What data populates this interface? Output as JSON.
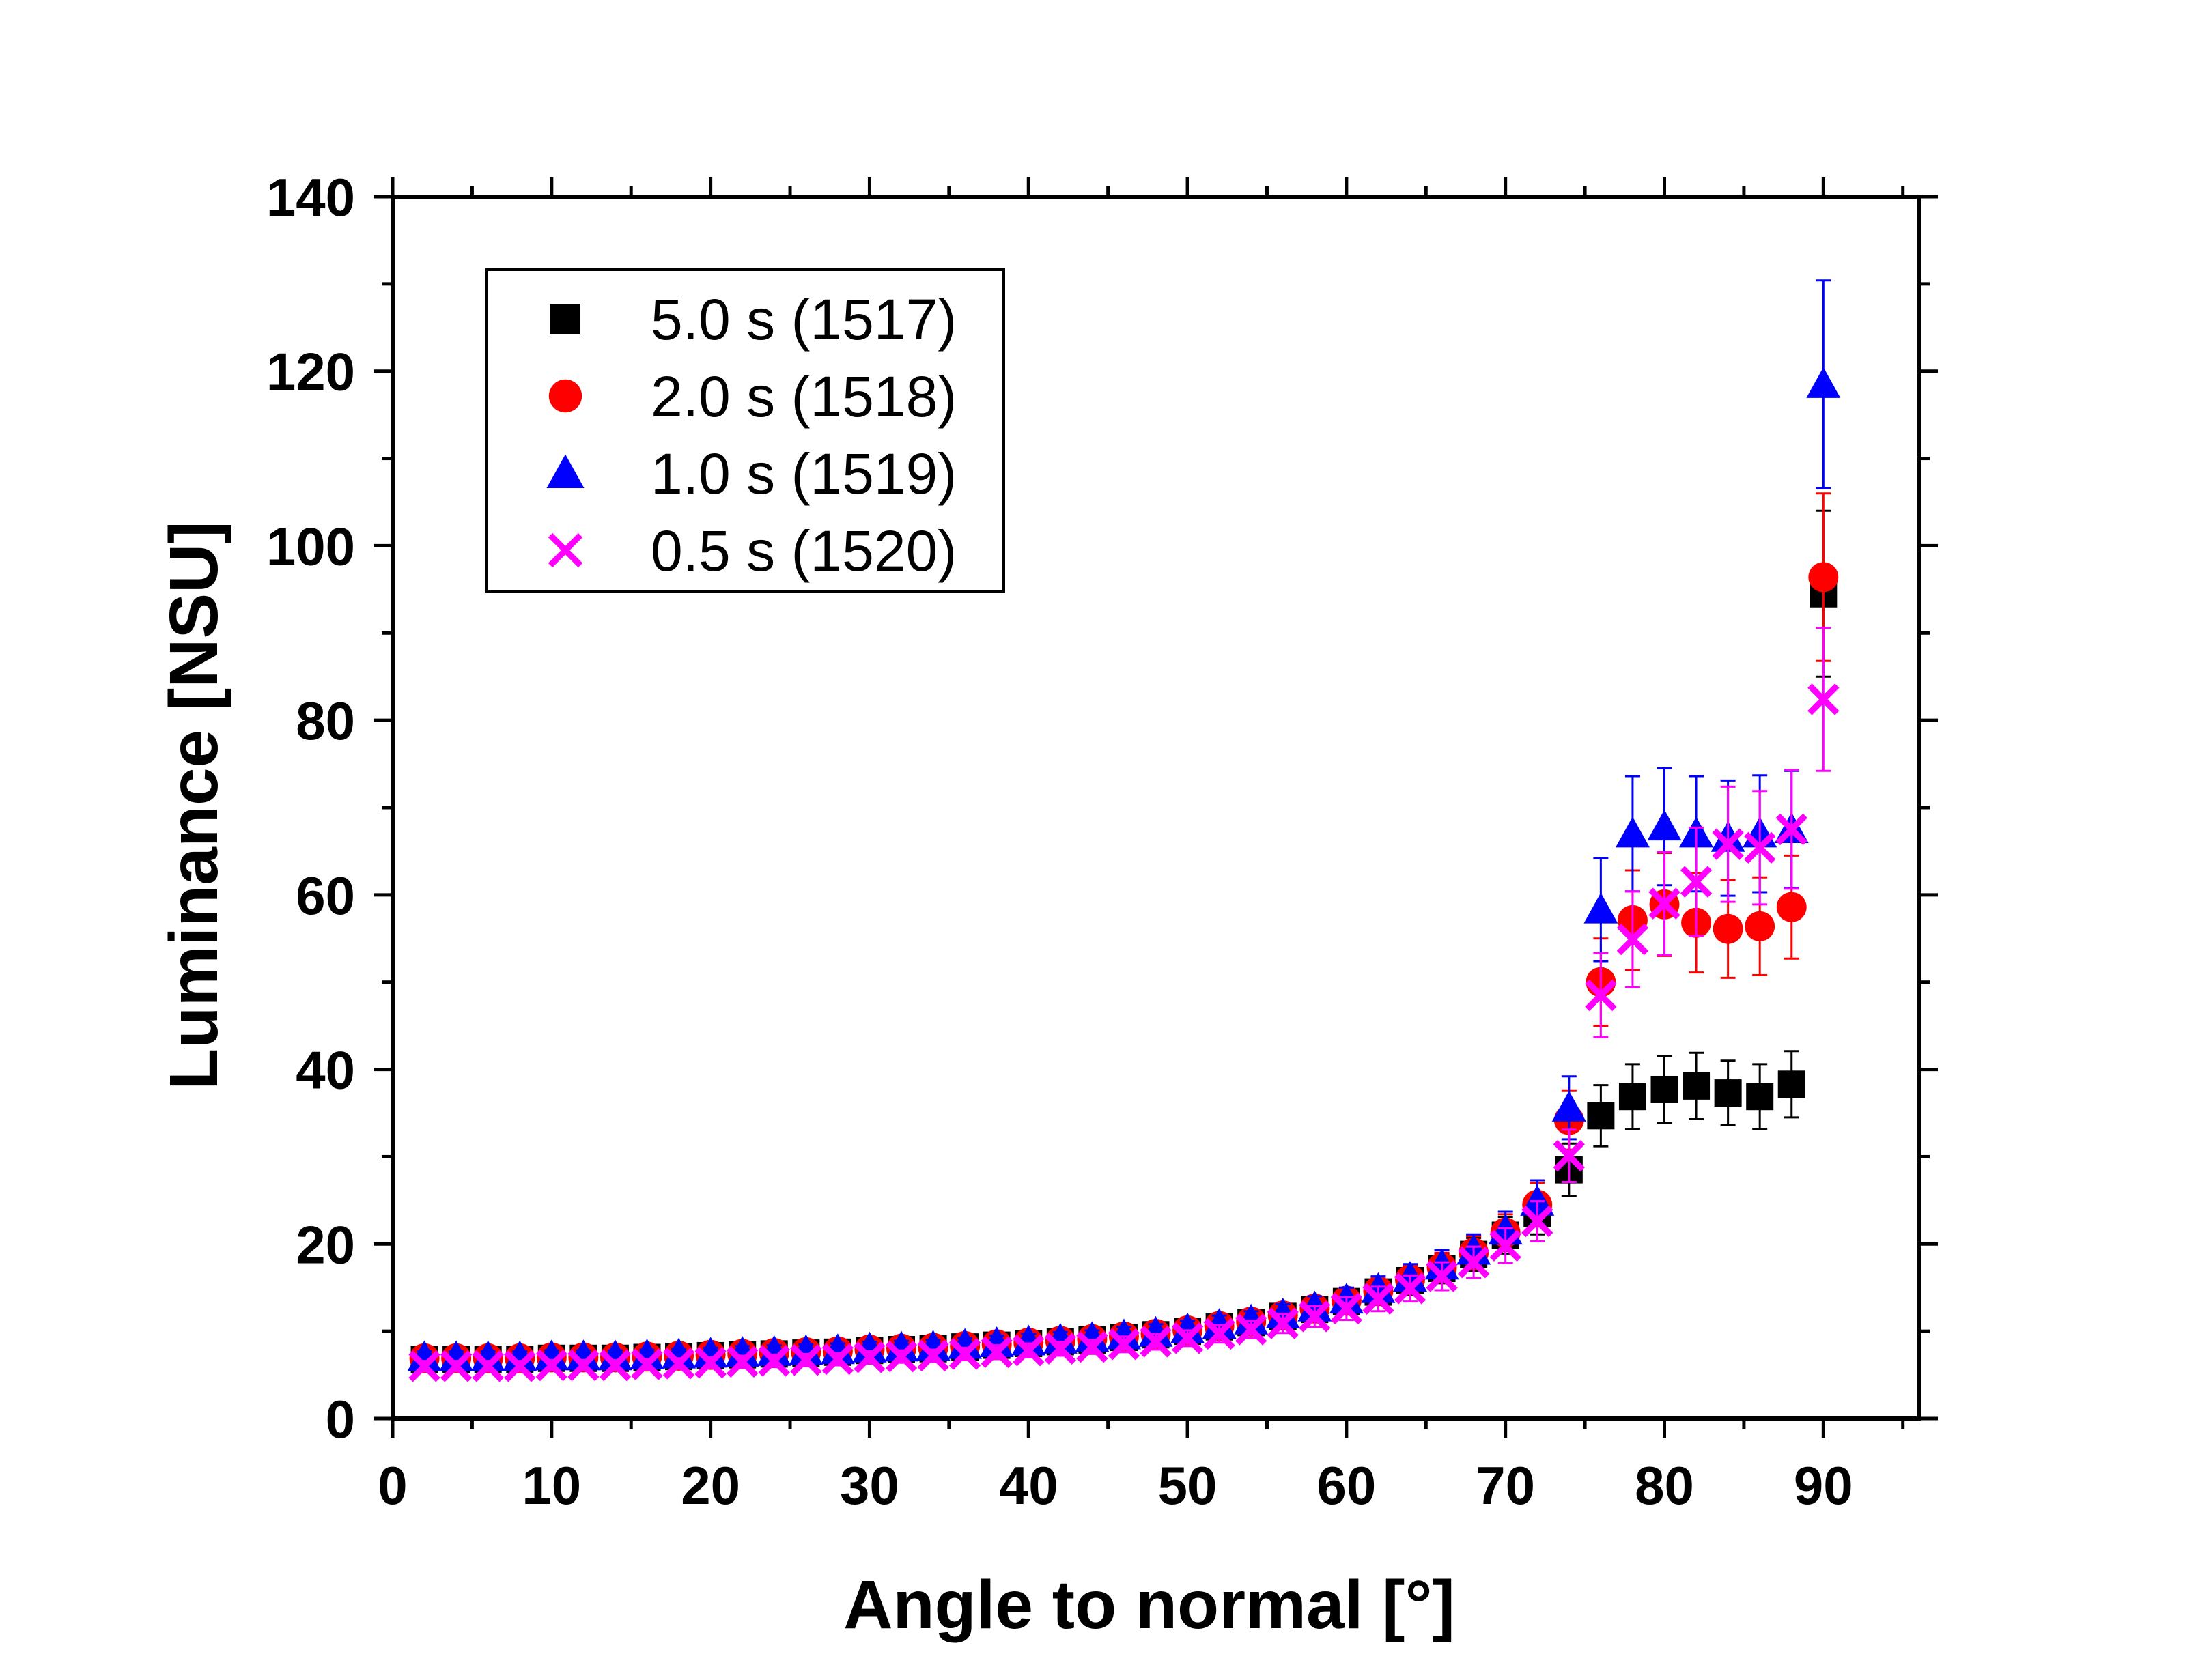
{
  "chart_data": {
    "type": "scatter",
    "xlabel": "Angle to normal [°]",
    "ylabel": "Luminance [NSU]",
    "xlim": [
      0,
      96
    ],
    "ylim": [
      0,
      140
    ],
    "xticks": [
      "0",
      "10",
      "20",
      "30",
      "40",
      "50",
      "60",
      "70",
      "80",
      "90"
    ],
    "yticks": [
      "0",
      "20",
      "40",
      "60",
      "80",
      "100",
      "120",
      "140"
    ],
    "legend_position": "top-left",
    "x": [
      2,
      4,
      6,
      8,
      10,
      12,
      14,
      16,
      18,
      20,
      22,
      24,
      26,
      28,
      30,
      32,
      34,
      36,
      38,
      40,
      42,
      44,
      46,
      48,
      50,
      52,
      54,
      56,
      58,
      60,
      62,
      64,
      66,
      68,
      70,
      72,
      74,
      76,
      78,
      80,
      82,
      84,
      86,
      88,
      90
    ],
    "series": [
      {
        "name": "5.0 s (1517)",
        "marker": "square",
        "color": "#000000",
        "values": [
          6.8,
          6.8,
          6.8,
          6.8,
          6.9,
          6.9,
          6.9,
          7.0,
          7.1,
          7.2,
          7.3,
          7.4,
          7.5,
          7.6,
          7.8,
          7.9,
          8.0,
          8.2,
          8.4,
          8.6,
          8.8,
          9.0,
          9.3,
          9.6,
          10.0,
          10.5,
          11.0,
          11.7,
          12.5,
          13.4,
          14.5,
          15.8,
          17.2,
          18.8,
          21.0,
          23.5,
          28.5,
          34.7,
          36.9,
          37.7,
          38.1,
          37.3,
          36.9,
          38.3,
          94.5
        ],
        "errors": [
          0.7,
          0.7,
          0.7,
          0.7,
          0.7,
          0.7,
          0.7,
          0.7,
          0.7,
          0.7,
          0.7,
          0.7,
          0.8,
          0.8,
          0.8,
          0.8,
          0.8,
          0.8,
          0.8,
          0.9,
          0.9,
          0.9,
          0.9,
          1.0,
          1.0,
          1.0,
          1.1,
          1.2,
          1.2,
          1.3,
          1.4,
          1.6,
          1.7,
          1.9,
          2.1,
          2.4,
          3.0,
          3.5,
          3.7,
          3.8,
          3.8,
          3.7,
          3.7,
          3.8,
          9.5
        ]
      },
      {
        "name": "2.0 s (1518)",
        "marker": "circle",
        "color": "#ff0000",
        "values": [
          6.9,
          6.9,
          6.9,
          6.9,
          7.0,
          7.0,
          7.0,
          7.1,
          7.2,
          7.3,
          7.4,
          7.5,
          7.6,
          7.7,
          7.9,
          8.0,
          8.1,
          8.3,
          8.5,
          8.7,
          8.9,
          9.1,
          9.4,
          9.7,
          10.1,
          10.6,
          11.1,
          11.8,
          12.6,
          13.5,
          14.6,
          15.9,
          17.3,
          19.0,
          21.3,
          24.5,
          34.2,
          50.0,
          57.1,
          58.9,
          56.8,
          56.1,
          56.4,
          58.6,
          96.4
        ],
        "errors": [
          0.7,
          0.7,
          0.7,
          0.7,
          0.7,
          0.7,
          0.7,
          0.7,
          0.7,
          0.7,
          0.7,
          0.8,
          0.8,
          0.8,
          0.8,
          0.8,
          0.8,
          0.8,
          0.9,
          0.9,
          0.9,
          0.9,
          0.9,
          1.0,
          1.0,
          1.1,
          1.1,
          1.2,
          1.3,
          1.4,
          1.5,
          1.6,
          1.7,
          1.9,
          2.1,
          2.5,
          3.4,
          5.0,
          5.7,
          5.9,
          5.7,
          5.6,
          5.6,
          5.9,
          9.6
        ]
      },
      {
        "name": "1.0 s (1519)",
        "marker": "triangle",
        "color": "#0000ff",
        "values": [
          7.0,
          7.0,
          7.0,
          7.0,
          7.1,
          7.1,
          7.1,
          7.2,
          7.3,
          7.4,
          7.5,
          7.6,
          7.7,
          7.8,
          8.0,
          8.1,
          8.2,
          8.4,
          8.6,
          8.8,
          9.0,
          9.2,
          9.5,
          9.8,
          10.2,
          10.7,
          11.2,
          11.9,
          12.7,
          13.6,
          14.8,
          16.1,
          17.5,
          19.2,
          21.5,
          24.8,
          35.6,
          58.3,
          67.0,
          67.8,
          67.0,
          66.5,
          67.0,
          67.5,
          118.5
        ],
        "errors": [
          0.7,
          0.7,
          0.7,
          0.7,
          0.7,
          0.7,
          0.7,
          0.7,
          0.7,
          0.7,
          0.8,
          0.8,
          0.8,
          0.8,
          0.8,
          0.8,
          0.8,
          0.8,
          0.9,
          0.9,
          0.9,
          0.9,
          1.0,
          1.0,
          1.0,
          1.1,
          1.1,
          1.2,
          1.3,
          1.4,
          1.5,
          1.6,
          1.8,
          1.9,
          2.2,
          2.5,
          3.6,
          5.9,
          6.6,
          6.7,
          6.6,
          6.6,
          6.7,
          6.7,
          11.9
        ]
      },
      {
        "name": "0.5 s (1520)",
        "marker": "x",
        "color": "#ff00ff",
        "values": [
          6.0,
          6.0,
          6.0,
          6.0,
          6.1,
          6.1,
          6.1,
          6.2,
          6.3,
          6.4,
          6.5,
          6.6,
          6.7,
          6.8,
          7.0,
          7.1,
          7.2,
          7.4,
          7.6,
          7.8,
          8.0,
          8.2,
          8.5,
          8.8,
          9.2,
          9.7,
          10.2,
          10.9,
          11.7,
          12.6,
          13.7,
          14.9,
          16.3,
          17.9,
          19.8,
          22.6,
          30.1,
          48.5,
          54.9,
          59.0,
          61.5,
          65.8,
          65.4,
          67.5,
          82.4
        ],
        "errors": [
          0.6,
          0.6,
          0.6,
          0.6,
          0.6,
          0.6,
          0.6,
          0.6,
          0.6,
          0.6,
          0.7,
          0.7,
          0.7,
          0.7,
          0.7,
          0.7,
          0.7,
          0.7,
          0.8,
          0.8,
          0.8,
          0.8,
          0.9,
          0.9,
          0.9,
          1.0,
          1.0,
          1.1,
          1.2,
          1.3,
          1.4,
          1.5,
          1.6,
          1.8,
          2.0,
          2.3,
          3.0,
          4.8,
          5.5,
          5.9,
          6.2,
          6.6,
          6.5,
          6.8,
          8.2
        ]
      }
    ]
  }
}
